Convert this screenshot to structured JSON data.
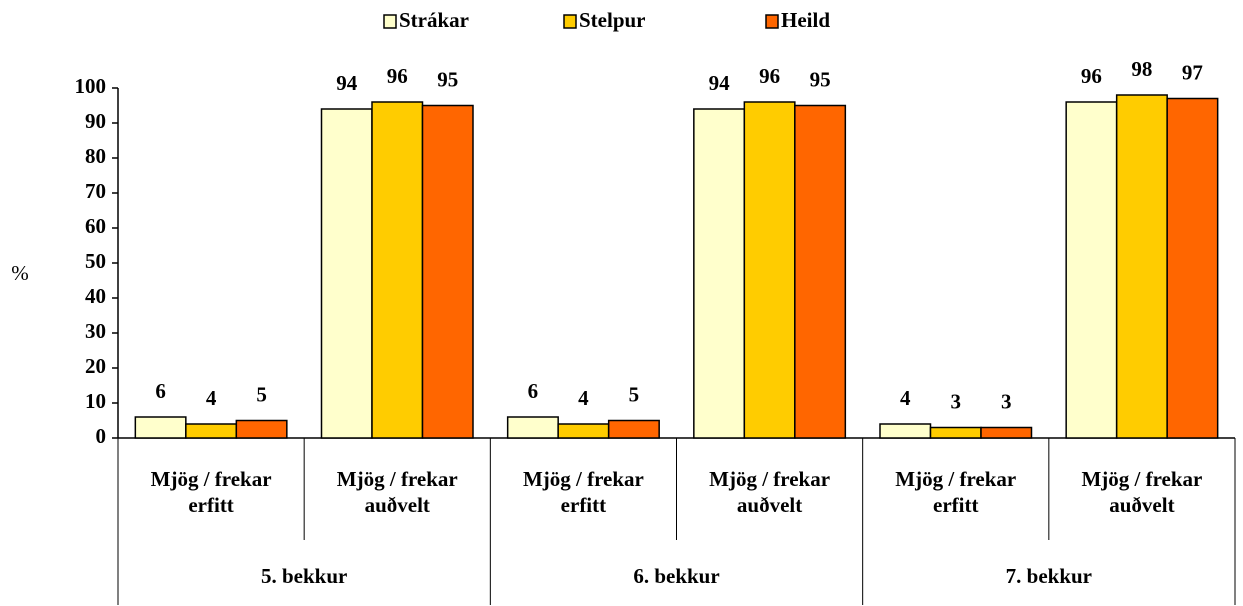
{
  "chart_data": {
    "type": "bar",
    "y_label": "%",
    "categories": [
      "Mjög / frekar erfitt",
      "Mjög / frekar auðvelt",
      "Mjög / frekar erfitt",
      "Mjög / frekar auðvelt",
      "Mjög / frekar erfitt",
      "Mjög / frekar auðvelt"
    ],
    "group_labels": [
      "5. bekkur",
      "6. bekkur",
      "7. bekkur"
    ],
    "series": [
      {
        "name": "Strákar",
        "color": "#ffffcc",
        "values": [
          6,
          94,
          6,
          94,
          4,
          96
        ]
      },
      {
        "name": "Stelpur",
        "color": "#ffcc00",
        "values": [
          4,
          96,
          4,
          96,
          3,
          98
        ]
      },
      {
        "name": "Heild",
        "color": "#ff6600",
        "values": [
          5,
          95,
          5,
          95,
          3,
          97
        ]
      }
    ],
    "ylim": [
      0,
      100
    ],
    "yticks": [
      0,
      10,
      20,
      30,
      40,
      50,
      60,
      70,
      80,
      90,
      100
    ],
    "legend": "top"
  }
}
